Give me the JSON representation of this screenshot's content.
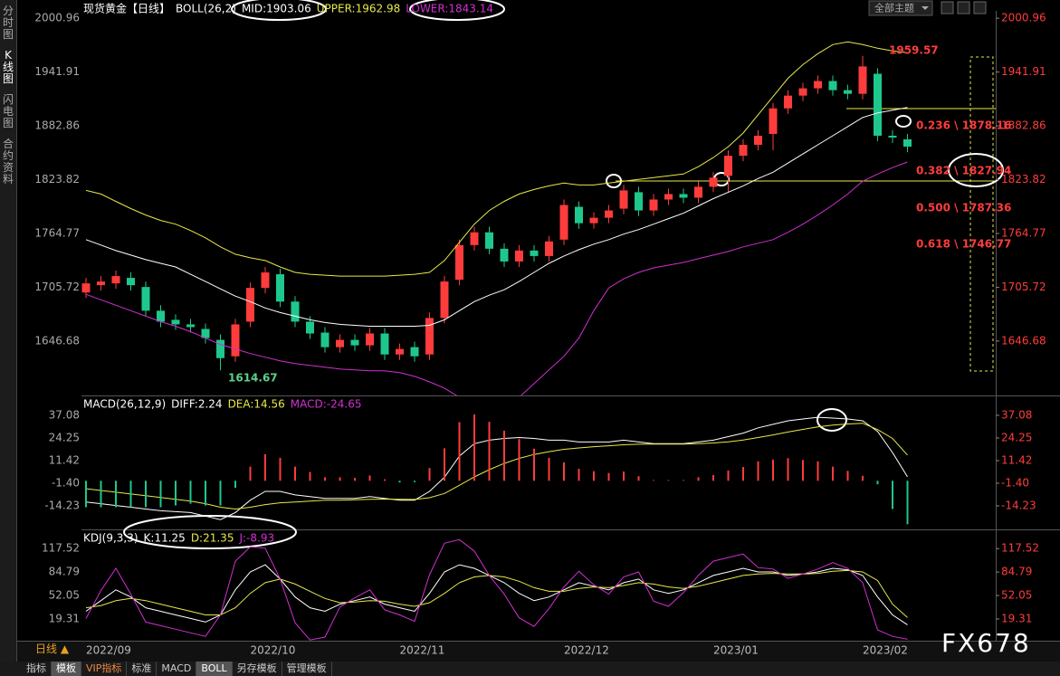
{
  "header": {
    "theme": "全部主题"
  },
  "sidebar": {
    "tabs": [
      "分时图",
      "K线图",
      "闪电图",
      "合约资料"
    ]
  },
  "toolbar": {
    "period": "日线 ▲",
    "tabs": [
      "指标",
      "模板",
      "VIP指标",
      "标准",
      "MACD",
      "BOLL",
      "另存模板",
      "管理模板"
    ]
  },
  "watermark": "FX678",
  "chart_data": [
    {
      "type": "candlestick",
      "title": "现货黄金【日线】",
      "indicator": "BOLL(26,2)",
      "up_color": "#ff3c3c",
      "down_color": "#1ec88c",
      "ylim": [
        1587,
        2009
      ],
      "yticks": [
        2000.96,
        1941.91,
        1882.86,
        1823.82,
        1764.77,
        1705.72,
        1646.68
      ],
      "open": [
        1700,
        1708,
        1710,
        1716,
        1706,
        1680,
        1670,
        1665,
        1660,
        1648,
        1630,
        1668,
        1705,
        1720,
        1690,
        1668,
        1656,
        1640,
        1648,
        1642,
        1655,
        1632,
        1640,
        1632,
        1672,
        1714,
        1752,
        1766,
        1748,
        1734,
        1746,
        1740,
        1758,
        1794,
        1776,
        1782,
        1792,
        1810,
        1790,
        1802,
        1808,
        1804,
        1816,
        1828,
        1850,
        1862,
        1874,
        1902,
        1916,
        1924,
        1932,
        1922,
        1918,
        1940,
        1872,
        1868
      ],
      "high": [
        1716,
        1718,
        1724,
        1722,
        1712,
        1686,
        1676,
        1671,
        1666,
        1654,
        1671,
        1711,
        1728,
        1726,
        1696,
        1674,
        1662,
        1654,
        1654,
        1661,
        1661,
        1644,
        1646,
        1678,
        1718,
        1758,
        1772,
        1772,
        1754,
        1752,
        1752,
        1762,
        1802,
        1800,
        1788,
        1796,
        1818,
        1816,
        1808,
        1814,
        1814,
        1822,
        1832,
        1856,
        1868,
        1878,
        1908,
        1922,
        1930,
        1938,
        1938,
        1928,
        1959.57,
        1946,
        1878,
        1874
      ],
      "low": [
        1694,
        1702,
        1704,
        1702,
        1674,
        1662,
        1659,
        1656,
        1644,
        1614.67,
        1624,
        1662,
        1699,
        1684,
        1662,
        1649,
        1634,
        1634,
        1636,
        1636,
        1626,
        1626,
        1624,
        1626,
        1666,
        1708,
        1746,
        1742,
        1728,
        1728,
        1734,
        1734,
        1752,
        1770,
        1770,
        1776,
        1786,
        1784,
        1784,
        1796,
        1798,
        1798,
        1810,
        1810,
        1844,
        1856,
        1856,
        1896,
        1910,
        1918,
        1916,
        1912,
        1912,
        1866,
        1864,
        1854
      ],
      "close": [
        1710,
        1712,
        1718,
        1708,
        1680,
        1668,
        1665,
        1662,
        1650,
        1628,
        1665,
        1705,
        1722,
        1690,
        1668,
        1655,
        1640,
        1648,
        1642,
        1655,
        1632,
        1638,
        1630,
        1672,
        1712,
        1752,
        1766,
        1748,
        1734,
        1746,
        1740,
        1756,
        1796,
        1776,
        1782,
        1790,
        1812,
        1790,
        1802,
        1808,
        1804,
        1816,
        1826,
        1850,
        1862,
        1872,
        1902,
        1916,
        1924,
        1932,
        1922,
        1918,
        1948,
        1872,
        1870,
        1860
      ],
      "series": [
        {
          "name": "MID:1903.06",
          "color": "#ffffff",
          "values": [
            1758,
            1752,
            1746,
            1741,
            1736,
            1732,
            1728,
            1720,
            1712,
            1704,
            1696,
            1690,
            1683,
            1678,
            1674,
            1670,
            1667,
            1665,
            1664,
            1663,
            1663,
            1663,
            1663,
            1664,
            1670,
            1680,
            1690,
            1697,
            1703,
            1712,
            1722,
            1732,
            1740,
            1747,
            1753,
            1758,
            1764,
            1769,
            1775,
            1781,
            1787,
            1795,
            1803,
            1810,
            1817,
            1825,
            1832,
            1842,
            1852,
            1862,
            1872,
            1882,
            1892,
            1897,
            1900,
            1903.06
          ]
        },
        {
          "name": "UPPER:1962.98",
          "color": "#e8e84a",
          "values": [
            1812,
            1808,
            1800,
            1792,
            1785,
            1779,
            1775,
            1768,
            1760,
            1750,
            1742,
            1738,
            1735,
            1728,
            1722,
            1720,
            1719,
            1718,
            1718,
            1718,
            1718,
            1719,
            1720,
            1722,
            1735,
            1755,
            1775,
            1790,
            1800,
            1808,
            1813,
            1817,
            1820,
            1818,
            1818,
            1820,
            1822,
            1824,
            1826,
            1828,
            1830,
            1838,
            1848,
            1860,
            1875,
            1895,
            1915,
            1935,
            1950,
            1962,
            1972,
            1975,
            1972,
            1968,
            1965,
            1962.98
          ]
        },
        {
          "name": "LOWER:1843.14",
          "color": "#d030d0",
          "values": [
            1698,
            1692,
            1686,
            1680,
            1674,
            1668,
            1663,
            1657,
            1650,
            1643,
            1638,
            1633,
            1629,
            1625,
            1622,
            1620,
            1618,
            1616,
            1615,
            1614,
            1614,
            1612,
            1608,
            1602,
            1595,
            1585,
            1575,
            1570,
            1572,
            1585,
            1600,
            1615,
            1630,
            1650,
            1680,
            1705,
            1715,
            1722,
            1727,
            1730,
            1733,
            1737,
            1741,
            1745,
            1750,
            1754,
            1758,
            1766,
            1775,
            1785,
            1796,
            1808,
            1822,
            1830,
            1837,
            1843.14
          ]
        }
      ],
      "annotations": [
        "1959.57",
        "1614.67",
        "0.236 \\ 1878.16",
        "0.382 \\ 1827.94",
        "0.500 \\ 1787.36",
        "0.618 \\ 1746.77"
      ]
    },
    {
      "type": "line",
      "indicator": "MACD(26,12,9)",
      "ylim": [
        -25,
        46.8
      ],
      "yticks": [
        37.08,
        24.25,
        11.42,
        {
          "value": -1.4,
          "label": "-1.40"
        },
        -14.23
      ],
      "series": [
        {
          "name": "DIFF:2.24",
          "color": "#ffffff",
          "values": [
            -12,
            -13,
            -14,
            -15,
            -16,
            -17,
            -17.5,
            -18,
            -20,
            -22,
            -18,
            -11,
            -6,
            -6,
            -8,
            -9,
            -10,
            -10,
            -10,
            -9,
            -10,
            -11,
            -11,
            -6,
            2,
            14,
            21,
            23,
            24,
            24.5,
            24,
            23,
            23,
            22,
            22,
            22,
            23,
            22,
            21,
            21,
            21,
            22,
            23,
            25,
            27,
            30,
            32,
            34,
            35,
            36,
            35.5,
            35,
            34,
            28,
            16,
            2.24
          ]
        },
        {
          "name": "DEA:14.56",
          "color": "#e8e84a",
          "values": [
            -4.5,
            -5.5,
            -6.5,
            -7.5,
            -8.5,
            -9.5,
            -10.5,
            -11.5,
            -13,
            -15,
            -16,
            -15,
            -13.5,
            -12.5,
            -12,
            -11.5,
            -11,
            -11,
            -10.8,
            -10.5,
            -10.4,
            -10.5,
            -10.6,
            -9.6,
            -7.2,
            -2.6,
            2.2,
            6.3,
            9.8,
            12.7,
            14.9,
            16.5,
            17.8,
            18.6,
            19.3,
            19.8,
            20.4,
            20.7,
            20.8,
            20.8,
            20.8,
            21,
            21.4,
            22.1,
            23.1,
            24.5,
            26,
            27.6,
            29.1,
            30.5,
            31.5,
            32.2,
            32.6,
            29,
            24,
            14.56
          ]
        },
        {
          "name": "MACD:-24.65",
          "color": "#d030d0",
          "type": "bar",
          "up_color": "#ff3c3c",
          "down_color": "#1ec88c",
          "values": [
            -15,
            -15,
            -15,
            -15,
            -15,
            -15,
            -14,
            -13,
            -14,
            -14,
            -4,
            8,
            15,
            13,
            8,
            5,
            2,
            2,
            1.6,
            3,
            0.8,
            -1,
            -0.8,
            7.2,
            18.4,
            33.2,
            37.6,
            33.4,
            28.4,
            23.6,
            18.2,
            13,
            10.4,
            6.8,
            5.4,
            4.4,
            5.2,
            2.6,
            0.4,
            0.4,
            0.4,
            2,
            3.2,
            5.8,
            7.8,
            11,
            12,
            12.8,
            11.8,
            11,
            8,
            5.6,
            2.8,
            -2,
            -16,
            -24.65
          ]
        }
      ]
    },
    {
      "type": "line",
      "indicator": "KDJ(9,3,3)",
      "ylim": [
        -11,
        138
      ],
      "yticks": [
        117.52,
        84.79,
        52.05,
        19.31
      ],
      "categories": [
        "2022/09",
        null,
        null,
        null,
        null,
        null,
        null,
        null,
        null,
        null,
        null,
        "2022/10",
        null,
        null,
        null,
        null,
        null,
        null,
        null,
        null,
        null,
        "2022/11",
        null,
        null,
        null,
        null,
        null,
        null,
        null,
        null,
        null,
        null,
        "2022/12",
        null,
        null,
        null,
        null,
        null,
        null,
        null,
        null,
        null,
        "2023/01",
        null,
        null,
        null,
        null,
        null,
        null,
        null,
        null,
        null,
        "2023/02",
        null,
        null,
        null
      ],
      "series": [
        {
          "name": "K:11.25",
          "color": "#ffffff",
          "values": [
            30,
            45,
            60,
            50,
            35,
            30,
            25,
            20,
            15,
            25,
            60,
            85,
            95,
            75,
            50,
            35,
            30,
            40,
            45,
            50,
            40,
            35,
            30,
            55,
            85,
            95,
            90,
            80,
            70,
            55,
            45,
            50,
            60,
            70,
            65,
            60,
            70,
            75,
            60,
            55,
            60,
            70,
            80,
            85,
            90,
            85,
            85,
            80,
            82,
            85,
            90,
            88,
            80,
            50,
            25,
            11.25
          ]
        },
        {
          "name": "D:21.35",
          "color": "#e8e84a",
          "values": [
            35,
            38,
            45,
            48,
            45,
            40,
            35,
            30,
            25,
            25,
            35,
            55,
            70,
            75,
            68,
            58,
            48,
            42,
            43,
            45,
            44,
            40,
            37,
            42,
            55,
            70,
            78,
            80,
            78,
            72,
            63,
            58,
            58,
            62,
            64,
            63,
            66,
            70,
            68,
            64,
            62,
            65,
            70,
            75,
            80,
            82,
            83,
            82,
            82,
            83,
            86,
            87,
            85,
            73,
            40,
            21.35
          ]
        },
        {
          "name": "J:-8.93",
          "color": "#d030d0",
          "values": [
            20,
            59,
            90,
            54,
            15,
            10,
            5,
            0,
            -5,
            25,
            100,
            120,
            118,
            75,
            14,
            -10,
            -6,
            36,
            49,
            60,
            32,
            25,
            16,
            81,
            125,
            130,
            114,
            80,
            54,
            21,
            9,
            34,
            64,
            86,
            67,
            54,
            78,
            85,
            44,
            37,
            56,
            80,
            100,
            105,
            110,
            91,
            89,
            76,
            82,
            89,
            98,
            90,
            70,
            4,
            -5,
            -8.93
          ]
        }
      ]
    }
  ]
}
